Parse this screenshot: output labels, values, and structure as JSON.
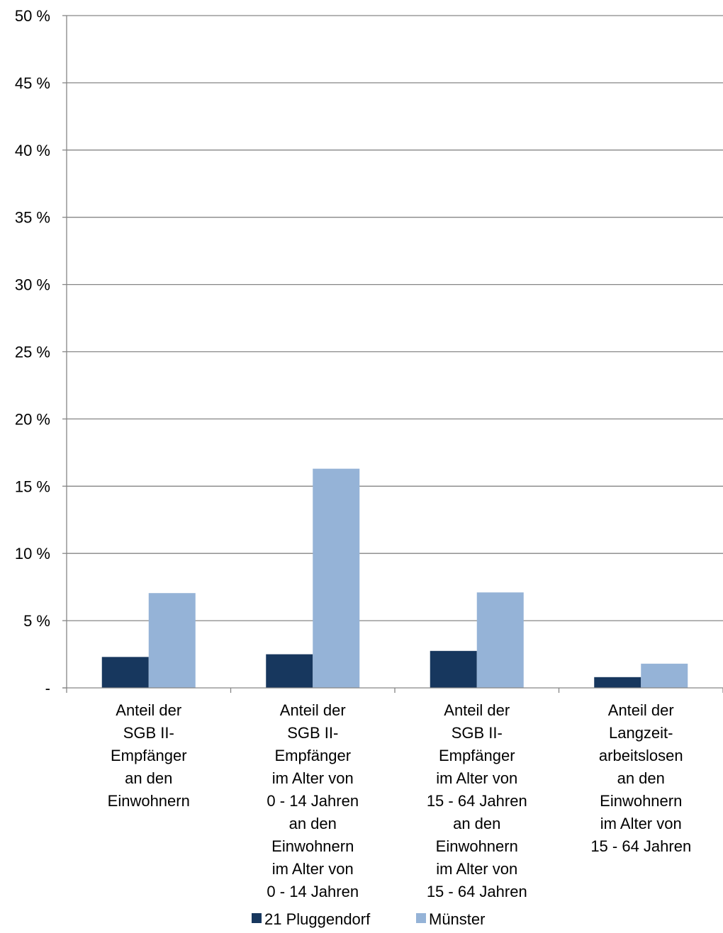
{
  "chart_data": {
    "type": "bar",
    "title": "",
    "xlabel": "",
    "ylabel": "",
    "ylim": [
      0,
      50
    ],
    "yticks": [
      {
        "value": 0,
        "label": "-"
      },
      {
        "value": 5,
        "label": "5 %"
      },
      {
        "value": 10,
        "label": "10 %"
      },
      {
        "value": 15,
        "label": "15 %"
      },
      {
        "value": 20,
        "label": "20 %"
      },
      {
        "value": 25,
        "label": "25 %"
      },
      {
        "value": 30,
        "label": "30 %"
      },
      {
        "value": 35,
        "label": "35 %"
      },
      {
        "value": 40,
        "label": "40 %"
      },
      {
        "value": 45,
        "label": "45 %"
      },
      {
        "value": 50,
        "label": "50 %"
      }
    ],
    "grid": true,
    "legend_position": "bottom",
    "categories": [
      [
        "Anteil der",
        "SGB II-",
        "Empfänger",
        "an den",
        "Einwohnern"
      ],
      [
        "Anteil der",
        "SGB II-",
        "Empfänger",
        "im Alter von",
        "0 - 14 Jahren",
        "an den",
        "Einwohnern",
        "im Alter von",
        "0 - 14 Jahren"
      ],
      [
        "Anteil der",
        "SGB II-",
        "Empfänger",
        "im Alter von",
        "15 - 64 Jahren",
        "an den",
        "Einwohnern",
        "im Alter von",
        "15 - 64 Jahren"
      ],
      [
        "Anteil der",
        "Langzeit-",
        "arbeitslosen",
        "an den",
        "Einwohnern",
        "im Alter von",
        "15 - 64 Jahren"
      ]
    ],
    "series": [
      {
        "name": "21 Pluggendorf",
        "color": "#17375e",
        "values": [
          2.3,
          2.5,
          2.75,
          0.8
        ]
      },
      {
        "name": "Münster",
        "color": "#95b3d7",
        "values": [
          7.05,
          16.3,
          7.1,
          1.8
        ]
      }
    ]
  }
}
